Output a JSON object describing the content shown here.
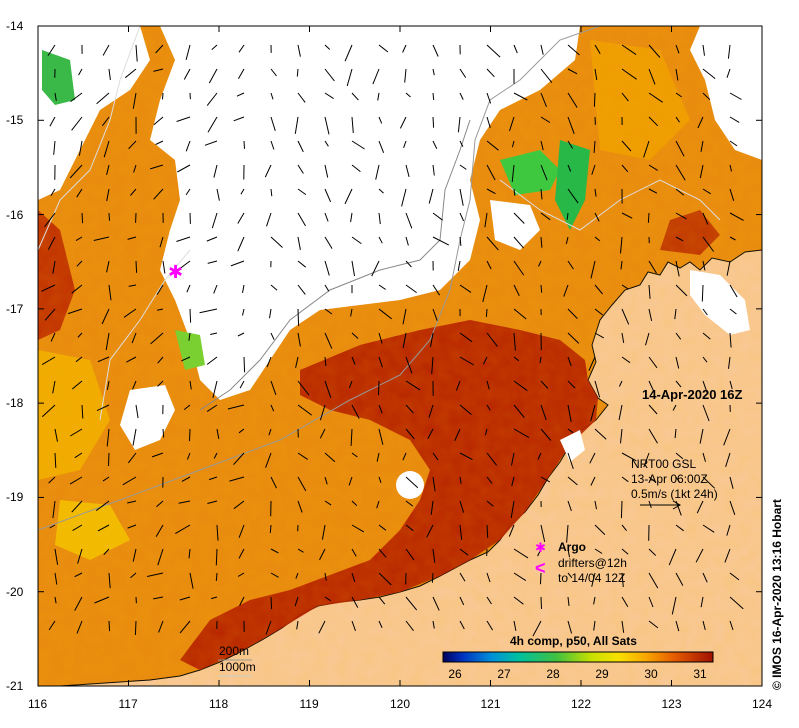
{
  "map": {
    "timestamp": "14-Apr-2020 16Z",
    "current_legend": {
      "source": "NRT00 GSL",
      "time": "13-Apr 06:00Z",
      "scale": "0.5m/s (1kt 24h)"
    },
    "argo_label": "Argo",
    "drifters_line1": "drifters@12h",
    "drifters_line2": "to 14/04 12Z",
    "drifter_symbol": "<",
    "depth_200": "200m",
    "depth_1000": "1000m",
    "colorbar_title": "4h comp, p50, All Sats",
    "colorbar_ticks": [
      "26",
      "27",
      "28",
      "29",
      "30",
      "31"
    ],
    "credit": "© IMOS 16-Apr-2020 13:16 Hobart",
    "y_ticks": [
      "-14",
      "-15",
      "-16",
      "-17",
      "-18",
      "-19",
      "-20",
      "-21"
    ],
    "x_ticks": [
      "116",
      "117",
      "118",
      "119",
      "120",
      "121",
      "122",
      "123",
      "124"
    ],
    "colors": {
      "land": "#f9c99a",
      "hot": "#a01200",
      "warm": "#e07000",
      "orange": "#f2a000",
      "yellow": "#f6d800",
      "green": "#30c040",
      "argo": "#ff00ff"
    }
  }
}
